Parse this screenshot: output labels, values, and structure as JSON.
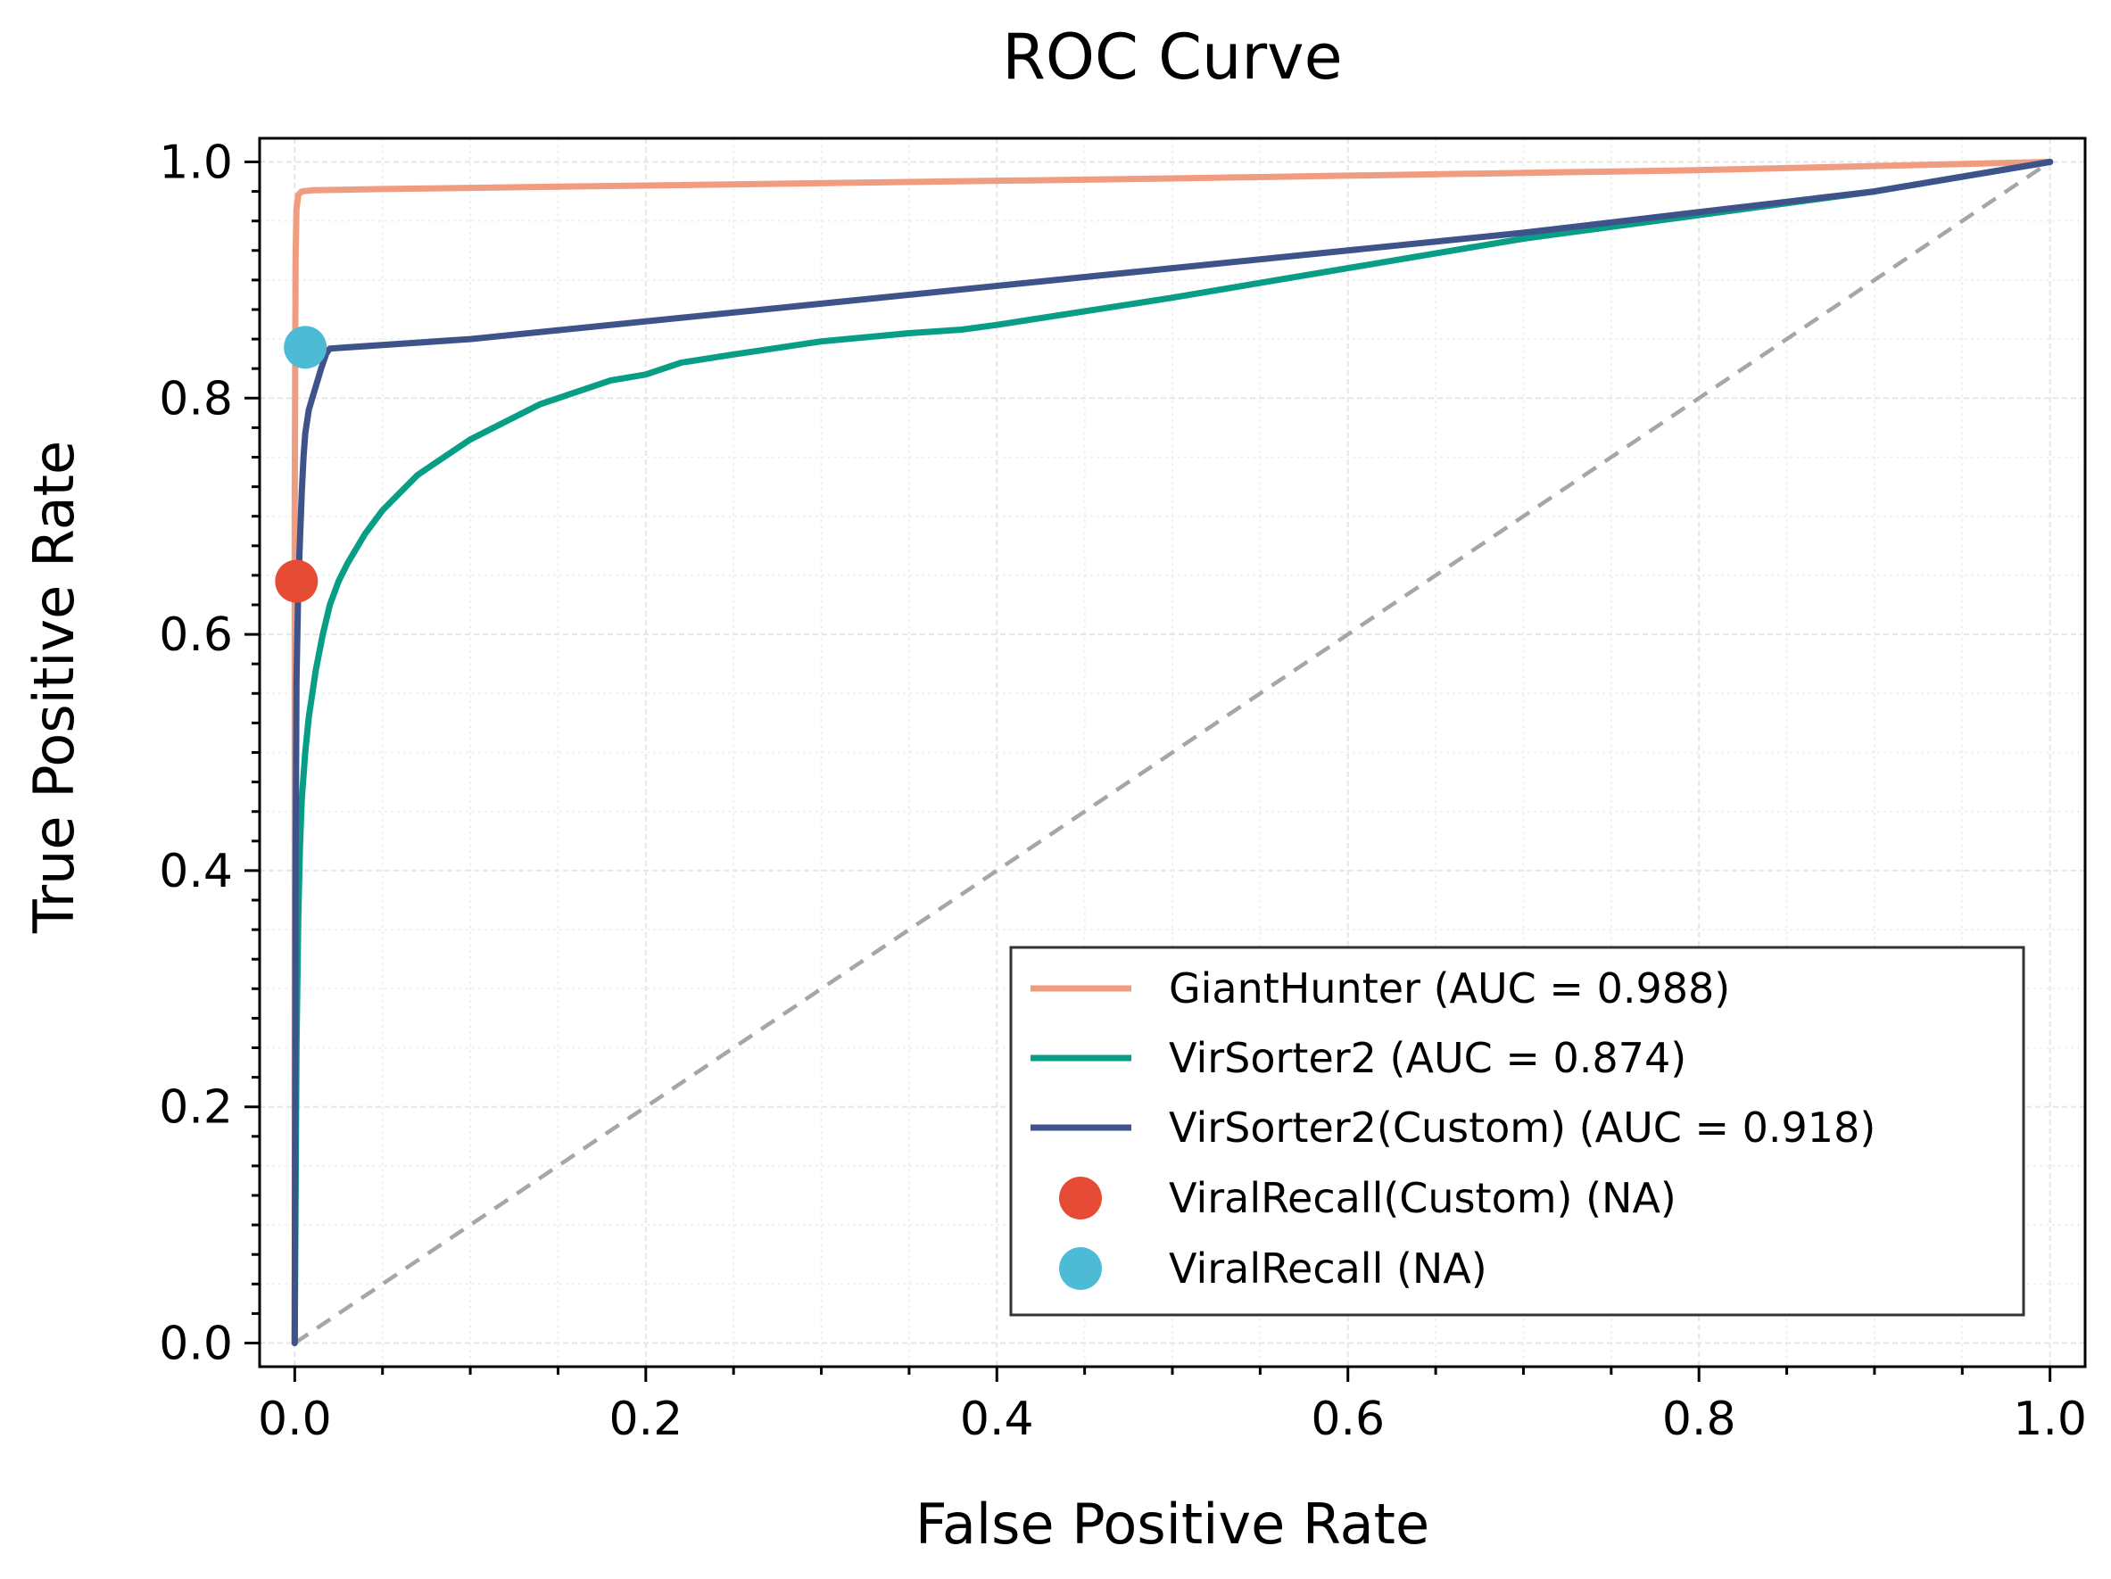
{
  "chart_data": {
    "type": "line",
    "title": "ROC Curve",
    "xlabel": "False Positive Rate",
    "ylabel": "True Positive Rate",
    "xlim": [
      -0.02,
      1.02
    ],
    "ylim": [
      -0.02,
      1.02
    ],
    "grid": true,
    "xticks": [
      0.0,
      0.2,
      0.4,
      0.6,
      0.8,
      1.0
    ],
    "yticks": [
      0.0,
      0.2,
      0.4,
      0.6,
      0.8,
      1.0
    ],
    "xtick_labels": [
      "0.0",
      "0.2",
      "0.4",
      "0.6",
      "0.8",
      "1.0"
    ],
    "ytick_labels": [
      "0.0",
      "0.2",
      "0.4",
      "0.6",
      "0.8",
      "1.0"
    ],
    "legend_position": "lower-right",
    "diagonal": {
      "x": [
        0,
        1
      ],
      "y": [
        0,
        1
      ],
      "color": "#a6a6a6",
      "style": "dashed"
    },
    "series": [
      {
        "name": "GiantHunter (AUC = 0.988)",
        "color": "#f09c80",
        "x": [
          0,
          0.0,
          0.0005,
          0.001,
          0.002,
          0.004,
          0.01,
          0.05,
          0.2,
          0.5,
          0.8,
          1.0
        ],
        "y": [
          0,
          0.7,
          0.92,
          0.96,
          0.972,
          0.975,
          0.976,
          0.977,
          0.98,
          0.986,
          0.993,
          1.0
        ]
      },
      {
        "name": "VirSorter2 (AUC = 0.874)",
        "color": "#079e85",
        "x": [
          0,
          0.001,
          0.002,
          0.003,
          0.004,
          0.006,
          0.008,
          0.012,
          0.016,
          0.02,
          0.025,
          0.03,
          0.04,
          0.05,
          0.06,
          0.07,
          0.08,
          0.09,
          0.1,
          0.12,
          0.14,
          0.16,
          0.18,
          0.2,
          0.22,
          0.25,
          0.3,
          0.35,
          0.38,
          0.4,
          0.5,
          0.6,
          0.7,
          0.8,
          0.9,
          1.0
        ],
        "y": [
          0,
          0.25,
          0.36,
          0.42,
          0.46,
          0.5,
          0.53,
          0.57,
          0.6,
          0.625,
          0.645,
          0.66,
          0.685,
          0.705,
          0.72,
          0.735,
          0.745,
          0.755,
          0.765,
          0.78,
          0.795,
          0.805,
          0.815,
          0.82,
          0.83,
          0.837,
          0.848,
          0.855,
          0.858,
          0.862,
          0.885,
          0.91,
          0.935,
          0.955,
          0.975,
          1.0
        ]
      },
      {
        "name": "VirSorter2(Custom) (AUC = 0.918)",
        "color": "#3e5389",
        "x": [
          0,
          0.0005,
          0.001,
          0.002,
          0.003,
          0.004,
          0.005,
          0.006,
          0.008,
          0.01,
          0.012,
          0.015,
          0.018,
          0.02,
          0.1,
          0.3,
          0.5,
          0.7,
          0.9,
          1.0
        ],
        "y": [
          0,
          0.4,
          0.56,
          0.64,
          0.68,
          0.72,
          0.75,
          0.77,
          0.79,
          0.8,
          0.81,
          0.825,
          0.838,
          0.842,
          0.85,
          0.88,
          0.91,
          0.94,
          0.975,
          1.0
        ]
      }
    ],
    "points": [
      {
        "name": "ViralRecall(Custom) (NA)",
        "color": "#e64b35",
        "x": 0.001,
        "y": 0.645
      },
      {
        "name": "ViralRecall (NA)",
        "color": "#4dbbd5",
        "x": 0.006,
        "y": 0.843
      }
    ]
  }
}
